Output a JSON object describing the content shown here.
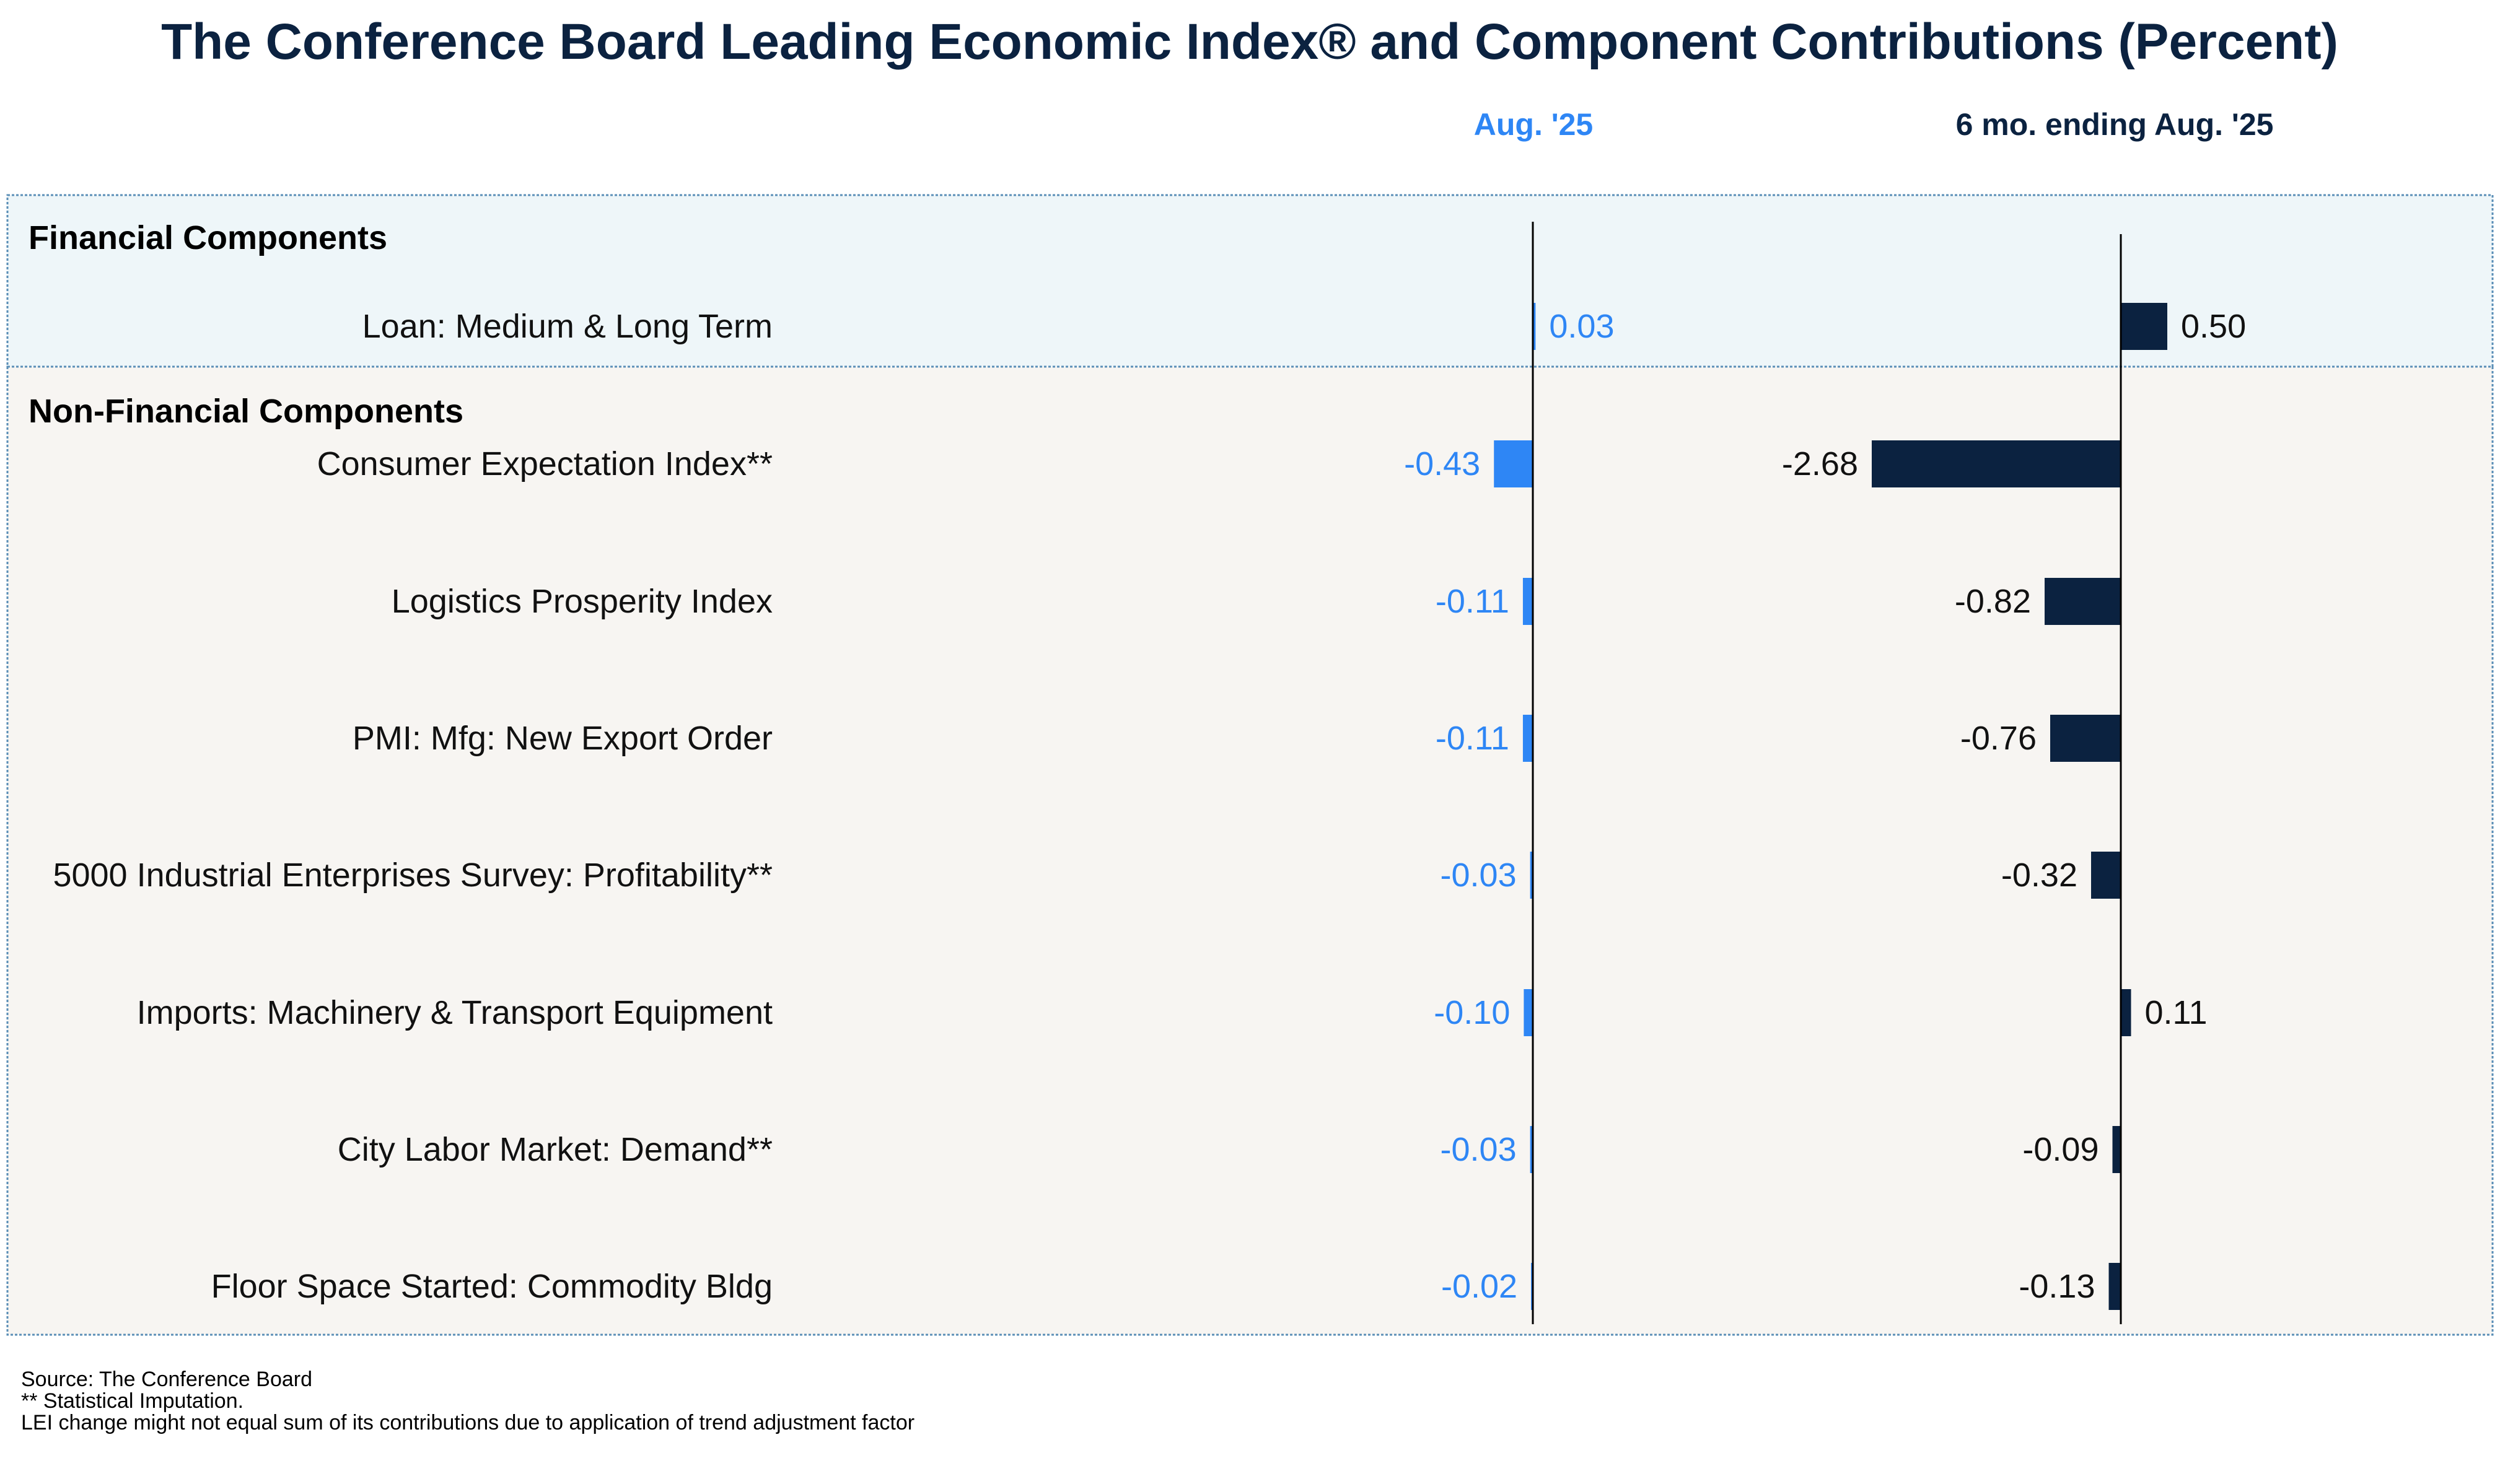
{
  "chart_data": {
    "type": "bar",
    "orientation": "horizontal",
    "title": "The Conference Board Leading Economic Index® and Component Contributions (Percent)",
    "series": [
      {
        "name": "Aug. '25",
        "color": "#2e86f5",
        "values": [
          0.03,
          -0.43,
          -0.11,
          -0.11,
          -0.03,
          -0.1,
          -0.03,
          -0.02
        ],
        "value_labels": [
          "0.03",
          "-0.43",
          "-0.11",
          "-0.11",
          "-0.03",
          "-0.10",
          "-0.03",
          "-0.02"
        ]
      },
      {
        "name": "6 mo. ending Aug. '25",
        "color": "#0b2240",
        "values": [
          0.5,
          -2.68,
          -0.82,
          -0.76,
          -0.32,
          0.11,
          -0.09,
          -0.13
        ],
        "value_labels": [
          "0.50",
          "-2.68",
          "-0.82",
          "-0.76",
          "-0.32",
          "0.11",
          "-0.09",
          "-0.13"
        ]
      }
    ],
    "groups": [
      {
        "name": "Financial Components",
        "background": "#eef6f9",
        "categories": [
          "Loan: Medium & Long Term"
        ]
      },
      {
        "name": "Non-Financial Components",
        "background": "#f7f5f2",
        "categories": [
          "Consumer Expectation Index**",
          "Logistics Prosperity Index",
          "PMI: Mfg: New Export Order",
          "5000 Industrial Enterprises Survey: Profitability**",
          "Imports: Machinery & Transport Equipment",
          "City Labor Market: Demand**",
          "Floor Space Started: Commodity Bldg"
        ]
      }
    ],
    "categories": [
      "Loan: Medium & Long Term",
      "Consumer Expectation Index**",
      "Logistics Prosperity Index",
      "PMI: Mfg: New Export Order",
      "5000 Industrial Enterprises Survey: Profitability**",
      "Imports: Machinery & Transport Equipment",
      "City Labor Market: Demand**",
      "Floor Space Started: Commodity Bldg"
    ],
    "grid": false,
    "legend": "none"
  },
  "footnotes": [
    "Source: The Conference Board",
    "**  Statistical Imputation.",
    "LEI change might not equal sum of its contributions due to application of trend adjustment factor"
  ]
}
